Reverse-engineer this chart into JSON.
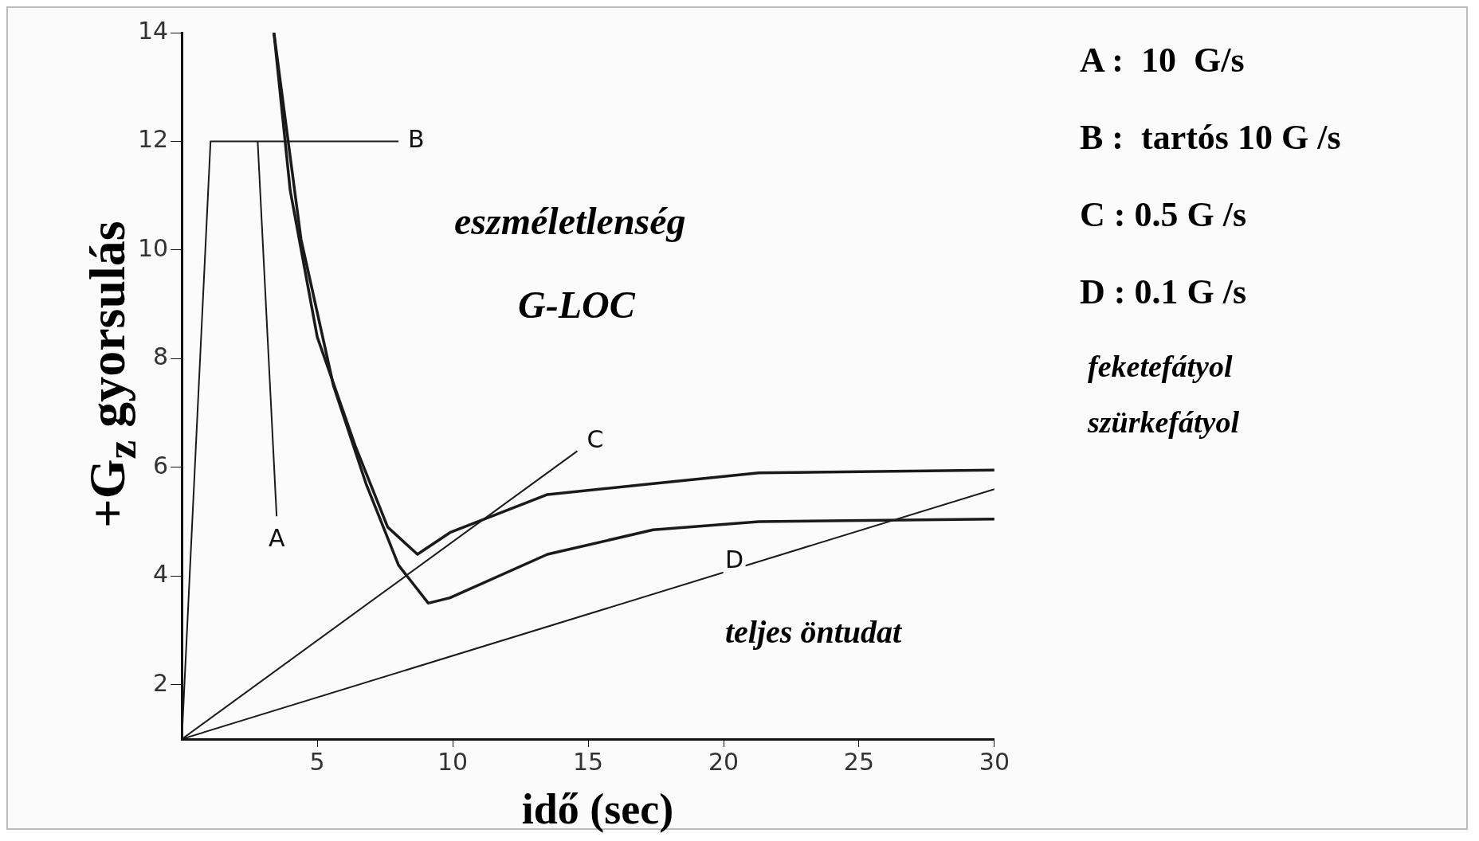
{
  "chart_data": {
    "type": "line",
    "xlabel": "idő (sec)",
    "ylabel": "+G$_{z}$  gyorsulás",
    "xlim": [
      0,
      30
    ],
    "ylim": [
      1,
      14
    ],
    "xticks": [
      5,
      10,
      15,
      20,
      25,
      30
    ],
    "yticks": [
      2,
      4,
      6,
      8,
      10,
      12,
      14
    ],
    "grid": false,
    "marker": "none",
    "line_style": "solid",
    "series": [
      {
        "color": "#1a1a1a",
        "x": [
          3.4,
          4.0,
          5.0,
          6.4,
          7.6,
          8.7,
          9.9,
          13.5,
          17.4,
          21.3,
          30
        ],
        "values": [
          14,
          11.1,
          8.4,
          6.4,
          4.9,
          4.4,
          4.8,
          5.5,
          5.7,
          5.9,
          5.95
        ]
      },
      {
        "color": "#1a1a1a",
        "x": [
          3.4,
          4.4,
          5.6,
          6.8,
          8.0,
          9.1,
          9.9,
          13.5,
          17.4,
          21.3,
          30
        ],
        "values": [
          14,
          10.2,
          7.5,
          5.7,
          4.2,
          3.5,
          3.6,
          4.4,
          4.85,
          5.0,
          5.05
        ]
      },
      {
        "color": "#1a1a1a",
        "x": [
          2.8,
          3.5
        ],
        "values": [
          12,
          5.1
        ]
      },
      {
        "color": "#1a1a1a",
        "x": [
          0,
          1.06,
          8.0
        ],
        "values": [
          1,
          12,
          12
        ]
      },
      {
        "color": "#1a1a1a",
        "x": [
          0,
          14.6
        ],
        "values": [
          1,
          6.3
        ]
      },
      {
        "color": "#1a1a1a",
        "x": [
          0,
          30
        ],
        "values": [
          1,
          5.6
        ]
      }
    ],
    "annotations": [
      "eszméletlenség",
      "G-LOC",
      "teljes öntudat",
      "A :  10  G/s",
      "B :  tartós 10 G /s",
      "C : 0.5 G /s",
      "D : 0.1 G /s",
      "feketefátyol",
      "szürkefátyol",
      {
        "text": "A",
        "x": 3.5,
        "y": 5.1
      },
      {
        "text": "B",
        "x": 8.0,
        "y": 12
      },
      {
        "text": "C",
        "x": 14.6,
        "y": 6.3
      },
      {
        "text": "D",
        "x": 20.4,
        "y": 4.26
      }
    ]
  }
}
